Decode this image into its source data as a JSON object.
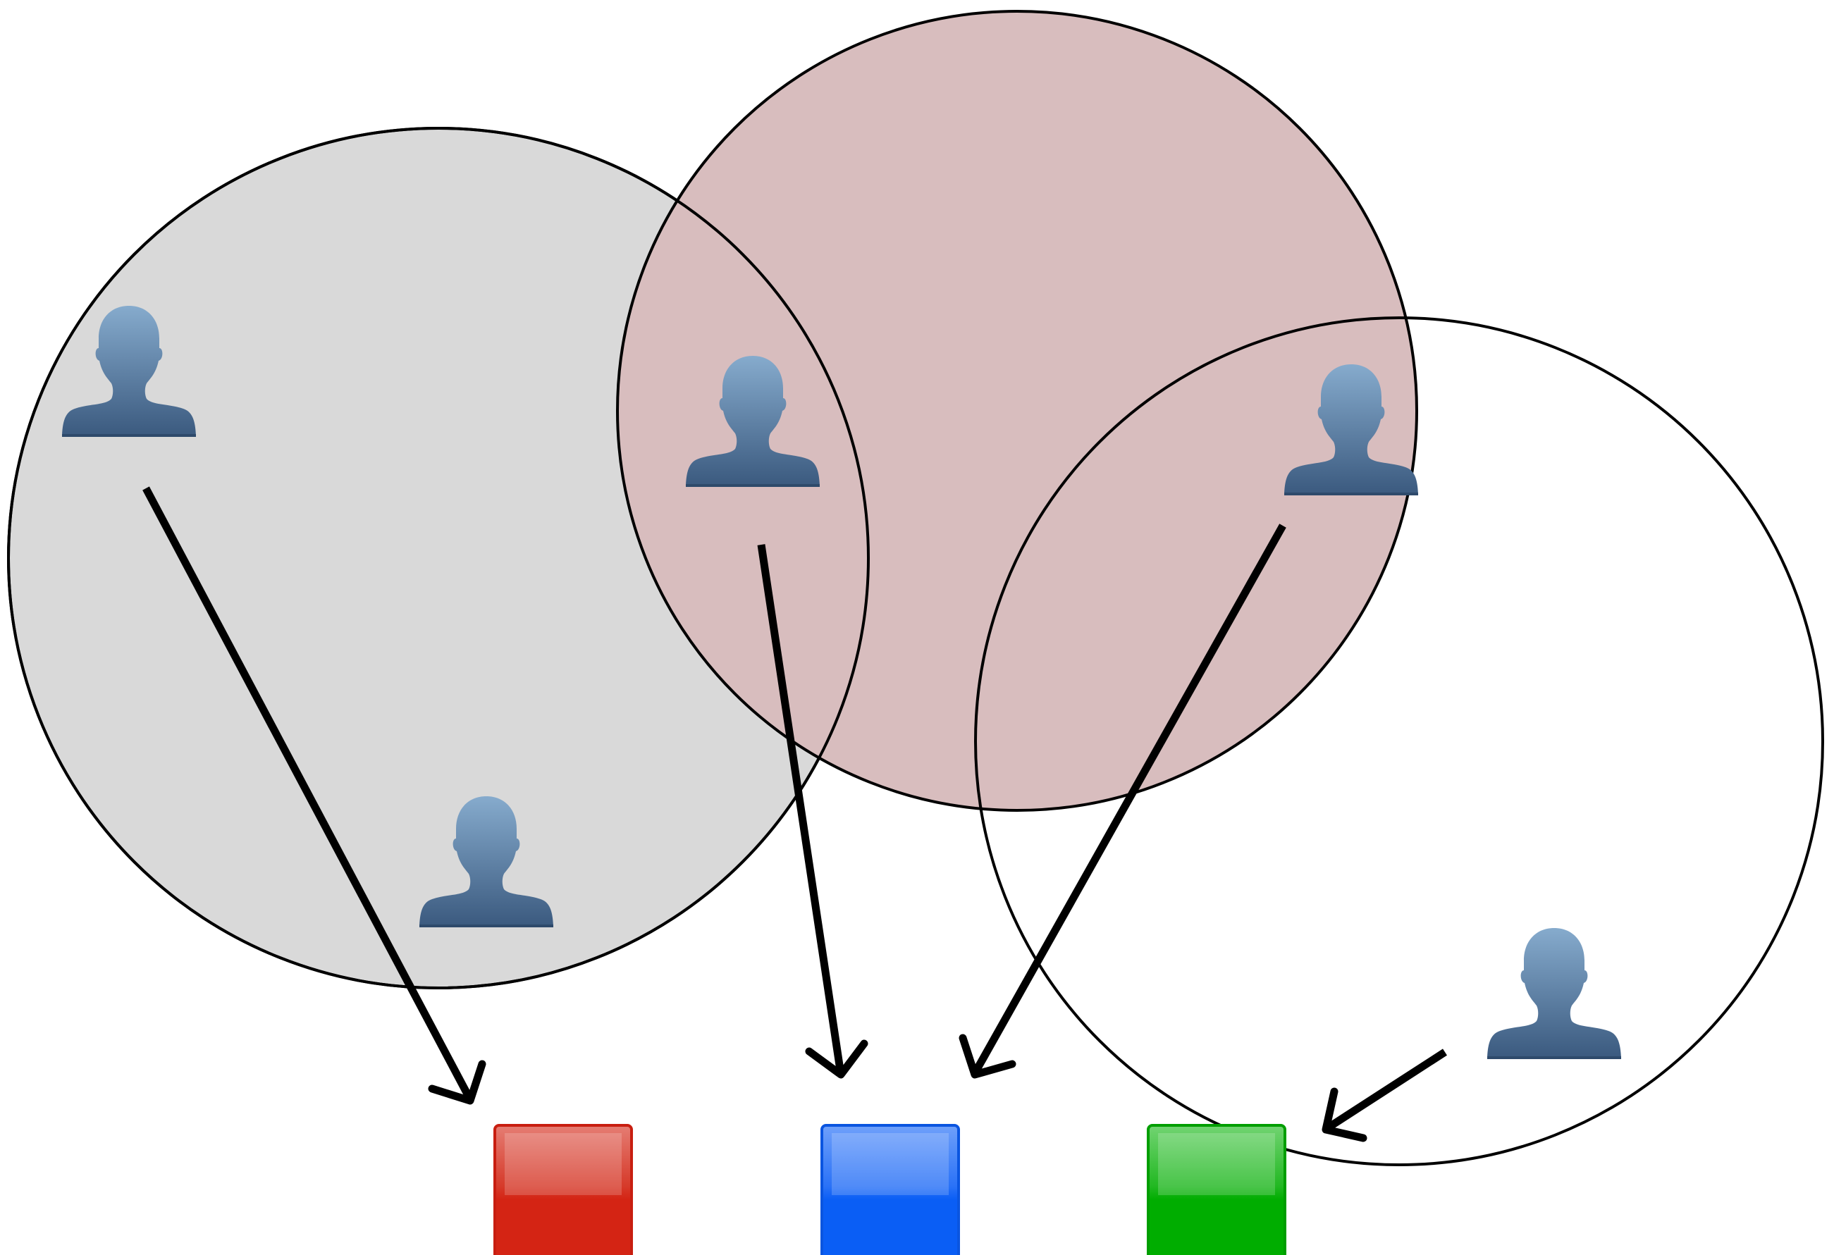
{
  "diagram": {
    "title": "",
    "colors": {
      "group_left_fill": "#d9d9d9",
      "group_middle_fill": "#d8bdbe",
      "group_right_fill": "none",
      "outline": "#000000",
      "person_top": "#82a7c9",
      "person_bottom": "#3d5d82",
      "red_box": "#d42414",
      "red_box_light": "#e87a70",
      "blue_box": "#0a5ef5",
      "blue_box_light": "#6c9ffa",
      "green_box": "#00ad00",
      "green_box_light": "#6fd36f"
    },
    "groups": [
      {
        "name": "group-left",
        "icon": "circle"
      },
      {
        "name": "group-middle",
        "icon": "circle"
      },
      {
        "name": "group-right",
        "icon": "circle"
      }
    ],
    "people": [
      {
        "name": "person-1",
        "icon": "person-icon"
      },
      {
        "name": "person-2",
        "icon": "person-icon"
      },
      {
        "name": "person-3",
        "icon": "person-icon"
      },
      {
        "name": "person-4",
        "icon": "person-icon"
      },
      {
        "name": "person-5",
        "icon": "person-icon"
      }
    ],
    "targets": [
      {
        "name": "red-box",
        "color": "#d42414"
      },
      {
        "name": "blue-box",
        "color": "#0a5ef5"
      },
      {
        "name": "green-box",
        "color": "#00ad00"
      }
    ],
    "arrows": [
      {
        "from": "person-1",
        "to": "red-box"
      },
      {
        "from": "person-2",
        "to": "blue-box"
      },
      {
        "from": "person-3",
        "to": "blue-box"
      },
      {
        "from": "person-5",
        "to": "green-box"
      }
    ]
  }
}
